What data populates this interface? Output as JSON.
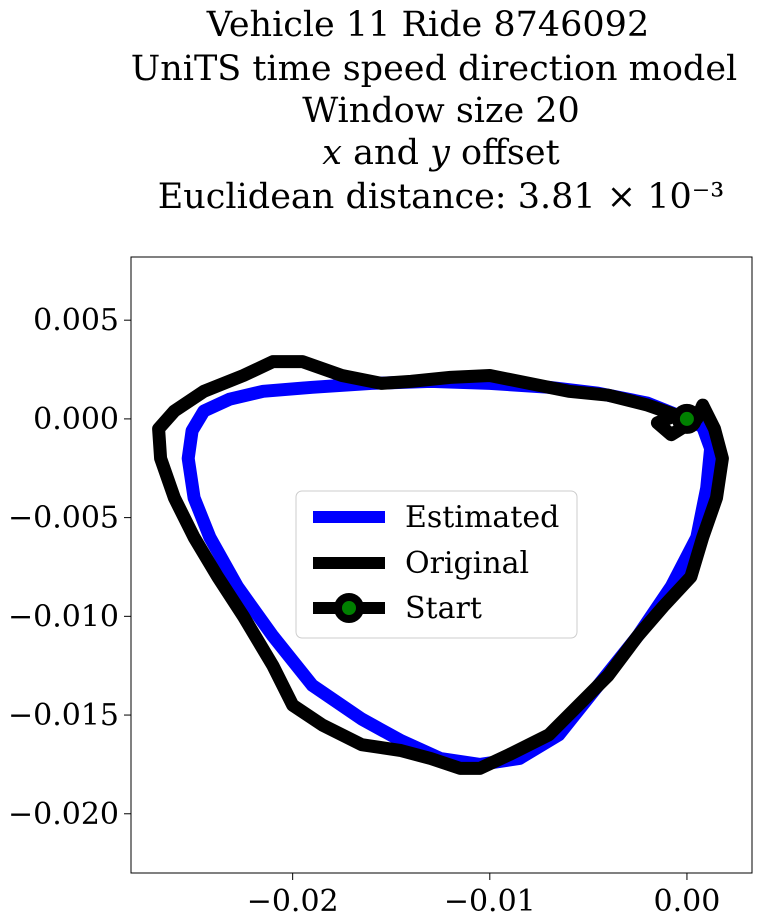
{
  "chart_data": {
    "type": "line",
    "title_lines": [
      "Vehicle 11 Ride 8746092",
      "UniTS time speed direction model",
      "Window size 20",
      "𝑥 and 𝑦 offset",
      "Euclidean distance: 3.81 × 10⁻³"
    ],
    "xlim": [
      -0.0282,
      0.0033
    ],
    "ylim": [
      -0.023,
      0.0082
    ],
    "x_ticks": [
      -0.02,
      -0.01,
      0.0
    ],
    "x_tick_labels": [
      "−0.02",
      "−0.01",
      "0.00"
    ],
    "y_ticks": [
      0.005,
      0.0,
      -0.005,
      -0.01,
      -0.015,
      -0.02
    ],
    "y_tick_labels": [
      "0.005",
      "0.000",
      "−0.005",
      "−0.010",
      "−0.015",
      "−0.020"
    ],
    "grid": false,
    "legend_position": "center",
    "series": [
      {
        "name": "Estimated",
        "color": "#0000ff",
        "points": [
          [
            0.0,
            0.0
          ],
          [
            -0.002,
            0.0008
          ],
          [
            -0.0045,
            0.0013
          ],
          [
            -0.007,
            0.0016
          ],
          [
            -0.01,
            0.0018
          ],
          [
            -0.013,
            0.0019
          ],
          [
            -0.016,
            0.0018
          ],
          [
            -0.019,
            0.0016
          ],
          [
            -0.0215,
            0.0014
          ],
          [
            -0.0232,
            0.001
          ],
          [
            -0.0245,
            0.0004
          ],
          [
            -0.0251,
            -0.0006
          ],
          [
            -0.0253,
            -0.002
          ],
          [
            -0.025,
            -0.004
          ],
          [
            -0.0242,
            -0.006
          ],
          [
            -0.0228,
            -0.0085
          ],
          [
            -0.021,
            -0.011
          ],
          [
            -0.019,
            -0.0135
          ],
          [
            -0.0165,
            -0.0152
          ],
          [
            -0.0145,
            -0.0163
          ],
          [
            -0.0125,
            -0.0172
          ],
          [
            -0.0105,
            -0.0175
          ],
          [
            -0.0085,
            -0.0172
          ],
          [
            -0.0065,
            -0.016
          ],
          [
            -0.0045,
            -0.0135
          ],
          [
            -0.0025,
            -0.011
          ],
          [
            -0.0008,
            -0.0085
          ],
          [
            0.0005,
            -0.006
          ],
          [
            0.001,
            -0.0035
          ],
          [
            0.0012,
            -0.0015
          ],
          [
            0.0008,
            -0.0004
          ],
          [
            0.0,
            0.0
          ]
        ]
      },
      {
        "name": "Original",
        "color": "#000000",
        "points": [
          [
            0.0,
            0.0
          ],
          [
            -0.002,
            0.0007
          ],
          [
            -0.004,
            0.0012
          ],
          [
            -0.006,
            0.0014
          ],
          [
            -0.008,
            0.0018
          ],
          [
            -0.01,
            0.0022
          ],
          [
            -0.012,
            0.0021
          ],
          [
            -0.014,
            0.0019
          ],
          [
            -0.0155,
            0.0018
          ],
          [
            -0.0175,
            0.0022
          ],
          [
            -0.0195,
            0.0029
          ],
          [
            -0.021,
            0.0029
          ],
          [
            -0.0225,
            0.0022
          ],
          [
            -0.0245,
            0.0014
          ],
          [
            -0.026,
            0.0004
          ],
          [
            -0.0268,
            -0.0005
          ],
          [
            -0.0267,
            -0.002
          ],
          [
            -0.026,
            -0.004
          ],
          [
            -0.025,
            -0.006
          ],
          [
            -0.0238,
            -0.008
          ],
          [
            -0.0225,
            -0.01
          ],
          [
            -0.021,
            -0.0125
          ],
          [
            -0.02,
            -0.0145
          ],
          [
            -0.0185,
            -0.0155
          ],
          [
            -0.0165,
            -0.0165
          ],
          [
            -0.0145,
            -0.0168
          ],
          [
            -0.013,
            -0.0172
          ],
          [
            -0.0115,
            -0.0177
          ],
          [
            -0.0105,
            -0.0177
          ],
          [
            -0.009,
            -0.017
          ],
          [
            -0.007,
            -0.016
          ],
          [
            -0.0055,
            -0.0145
          ],
          [
            -0.004,
            -0.013
          ],
          [
            -0.0025,
            -0.011
          ],
          [
            -0.0012,
            -0.0095
          ],
          [
            0.0002,
            -0.008
          ],
          [
            0.0008,
            -0.006
          ],
          [
            0.0015,
            -0.004
          ],
          [
            0.0018,
            -0.002
          ],
          [
            0.0014,
            -0.0005
          ],
          [
            0.0008,
            0.0007
          ],
          [
            0.0005,
            0.0
          ],
          [
            -0.0008,
            -0.0008
          ],
          [
            -0.0015,
            -0.0002
          ],
          [
            -0.0005,
            0.0002
          ],
          [
            0.0,
            0.0
          ]
        ]
      },
      {
        "name": "Start",
        "color": "#000000",
        "marker_face_color": "#008000",
        "points": [
          [
            0.0,
            0.0
          ]
        ]
      }
    ]
  }
}
